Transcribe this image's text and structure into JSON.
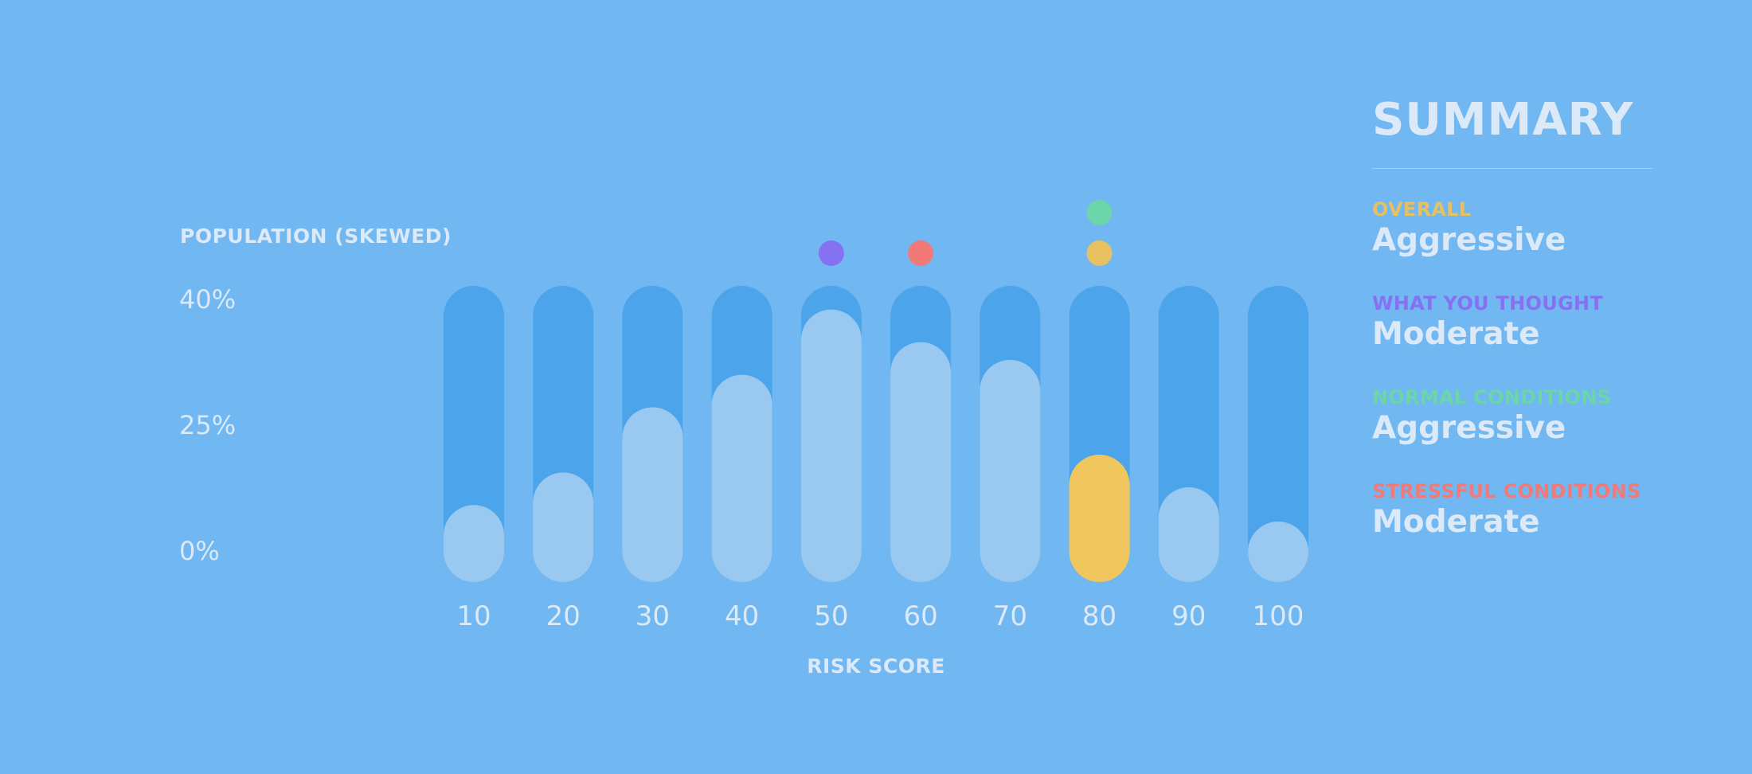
{
  "chart_data": {
    "type": "bar",
    "ylabel": "POPULATION (SKEWED)",
    "xlabel": "RISK SCORE",
    "yticks": [
      "40%",
      "25%",
      "0%"
    ],
    "categories": [
      "10",
      "20",
      "30",
      "40",
      "50",
      "60",
      "70",
      "80",
      "90",
      "100"
    ],
    "values": [
      0.26,
      0.37,
      0.59,
      0.7,
      0.92,
      0.81,
      0.75,
      0.43,
      0.32,
      0.19
    ],
    "value_scale_note": "fraction of full bar height",
    "highlight_category": "80",
    "markers": [
      {
        "category": "50",
        "series": "what_you_thought",
        "row": 1
      },
      {
        "category": "60",
        "series": "stressful_conditions",
        "row": 1
      },
      {
        "category": "80",
        "series": "overall",
        "row": 1
      },
      {
        "category": "80",
        "series": "normal_conditions",
        "row": 2
      }
    ],
    "grid": false
  },
  "colors": {
    "background": "#71b7f1",
    "track": "#4ca4ea",
    "fill": "#99c9f0",
    "highlight": "#f0c65e",
    "text": "#dbe9f8",
    "overall": "#e7c160",
    "what_you_thought": "#8571f2",
    "normal_conditions": "#6ad6a9",
    "stressful_conditions": "#f17a78"
  },
  "summary": {
    "title": "SUMMARY",
    "items": [
      {
        "key": "overall",
        "label": "OVERALL",
        "value": "Aggressive"
      },
      {
        "key": "what_you_thought",
        "label": "WHAT YOU THOUGHT",
        "value": "Moderate"
      },
      {
        "key": "normal_conditions",
        "label": "NORMAL CONDITIONS",
        "value": "Aggressive"
      },
      {
        "key": "stressful_conditions",
        "label": "STRESSFUL CONDITIONS",
        "value": "Moderate"
      }
    ]
  }
}
